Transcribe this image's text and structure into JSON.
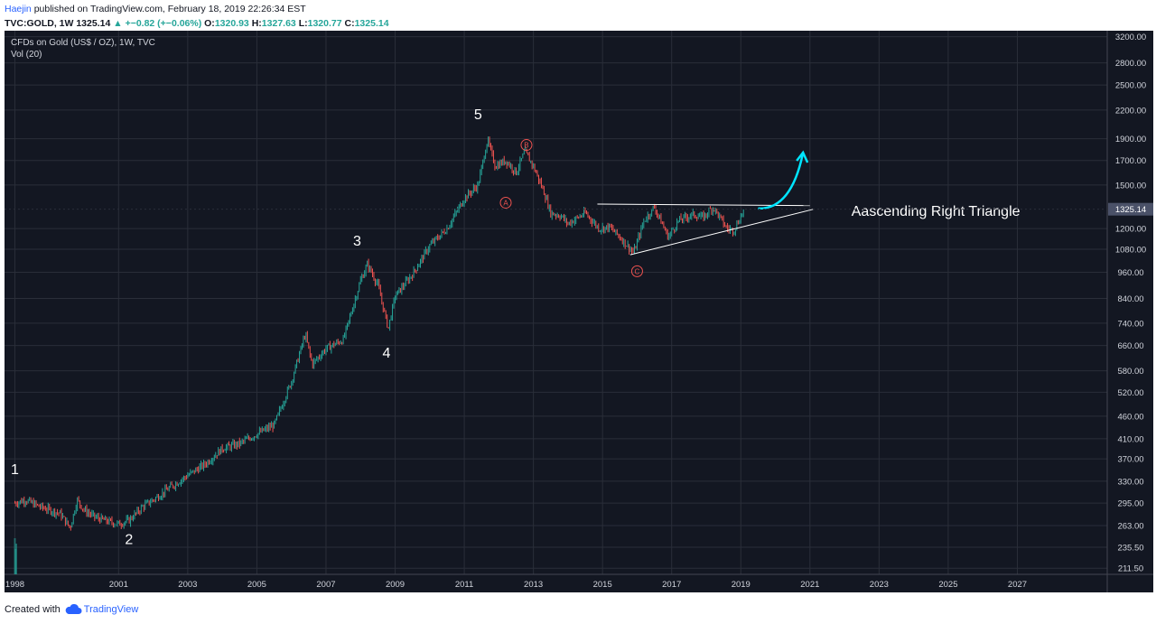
{
  "header": {
    "author": "Haejin",
    "published_text": "published on TradingView.com, February 18, 2019 22:26:34 EST",
    "symbol": "TVC:GOLD, 1W",
    "price": "1325.14",
    "change": "+−0.82 (+−0.06%)",
    "open_label": "O:",
    "open": "1320.93",
    "high_label": "H:",
    "high": "1327.63",
    "low_label": "L:",
    "low": "1320.77",
    "close_label": "C:",
    "close": "1325.14"
  },
  "legend": {
    "title": "CFDs on Gold (US$ / OZ), 1W, TVC",
    "volume": "Vol (20)"
  },
  "colors": {
    "background": "#131722",
    "up": "#26a69a",
    "down": "#ef5350",
    "grid": "#2a2e39",
    "axis_text": "#d1d4dc",
    "price_tag": "#4a5168",
    "annotation": "#ffffff",
    "arrow": "#00e5ff",
    "wave_circle": "#ef5350"
  },
  "chart_data": {
    "type": "line",
    "title": "CFDs on Gold (US$ / OZ), 1W, TVC",
    "y_scale": "log",
    "ylim": [
      205,
      3300
    ],
    "xlim": [
      1997.7,
      2029.6
    ],
    "y_ticks": [
      "3200.00",
      "2800.00",
      "2500.00",
      "2200.00",
      "1900.00",
      "1700.00",
      "1500.00",
      "1325.14",
      "1200.00",
      "1080.00",
      "960.00",
      "840.00",
      "740.00",
      "660.00",
      "580.00",
      "520.00",
      "460.00",
      "410.00",
      "370.00",
      "330.00",
      "295.00",
      "263.00",
      "235.50",
      "211.50"
    ],
    "x_ticks": [
      "1998",
      "2001",
      "2003",
      "2005",
      "2007",
      "2009",
      "2011",
      "2013",
      "2015",
      "2017",
      "2019",
      "2021",
      "2023",
      "2025",
      "2027"
    ],
    "last_price": "1325.14",
    "grid": true,
    "series": [
      {
        "name": "",
        "x": [
          1998.0,
          1998.3,
          1998.7,
          1999.0,
          1999.3,
          1999.6,
          1999.8,
          2000.0,
          2000.3,
          2000.6,
          2001.0,
          2001.3,
          2001.7,
          2002.0,
          2002.5,
          2003.0,
          2003.5,
          2004.0,
          2004.5,
          2005.0,
          2005.5,
          2006.0,
          2006.4,
          2006.6,
          2007.0,
          2007.5,
          2008.0,
          2008.2,
          2008.5,
          2008.8,
          2009.0,
          2009.5,
          2010.0,
          2010.5,
          2011.0,
          2011.4,
          2011.67,
          2011.9,
          2012.2,
          2012.5,
          2012.75,
          2013.0,
          2013.3,
          2013.5,
          2013.8,
          2014.0,
          2014.5,
          2014.9,
          2015.2,
          2015.5,
          2015.9,
          2016.2,
          2016.5,
          2016.9,
          2017.2,
          2017.6,
          2017.9,
          2018.2,
          2018.6,
          2018.8,
          2019.1
        ],
        "values": [
          295,
          300,
          290,
          285,
          280,
          260,
          300,
          285,
          275,
          270,
          265,
          270,
          290,
          300,
          320,
          340,
          360,
          390,
          400,
          420,
          440,
          550,
          700,
          600,
          650,
          680,
          920,
          1000,
          900,
          720,
          850,
          950,
          1100,
          1200,
          1400,
          1500,
          1890,
          1650,
          1700,
          1600,
          1780,
          1650,
          1450,
          1300,
          1280,
          1230,
          1300,
          1200,
          1210,
          1150,
          1060,
          1250,
          1340,
          1150,
          1250,
          1290,
          1270,
          1340,
          1200,
          1190,
          1325
        ]
      }
    ],
    "annotations": [
      {
        "text": "1",
        "x": 1998.0,
        "y": 350
      },
      {
        "text": "2",
        "x": 2001.3,
        "y": 245
      },
      {
        "text": "3",
        "x": 2007.9,
        "y": 1125
      },
      {
        "text": "4",
        "x": 2008.75,
        "y": 635
      },
      {
        "text": "5",
        "x": 2011.4,
        "y": 2150
      },
      {
        "text": "A",
        "x": 2012.2,
        "y": 1370,
        "circled": true
      },
      {
        "text": "B",
        "x": 2012.8,
        "y": 1840,
        "circled": true
      },
      {
        "text": "C",
        "x": 2016.0,
        "y": 965,
        "circled": true
      },
      {
        "text": "Aascending Right Triangle",
        "x": 2022.2,
        "y": 1310
      }
    ],
    "trendlines": [
      {
        "x1": 2014.85,
        "y1": 1360,
        "x2": 2021.0,
        "y2": 1350
      },
      {
        "x1": 2015.8,
        "y1": 1050,
        "x2": 2021.1,
        "y2": 1325
      }
    ],
    "projection_arrow": {
      "x": [
        2019.5,
        2020.2,
        2020.8
      ],
      "y": [
        1330,
        1450,
        1770
      ]
    }
  },
  "footer": {
    "created_with": "Created with",
    "brand": "TradingView"
  }
}
